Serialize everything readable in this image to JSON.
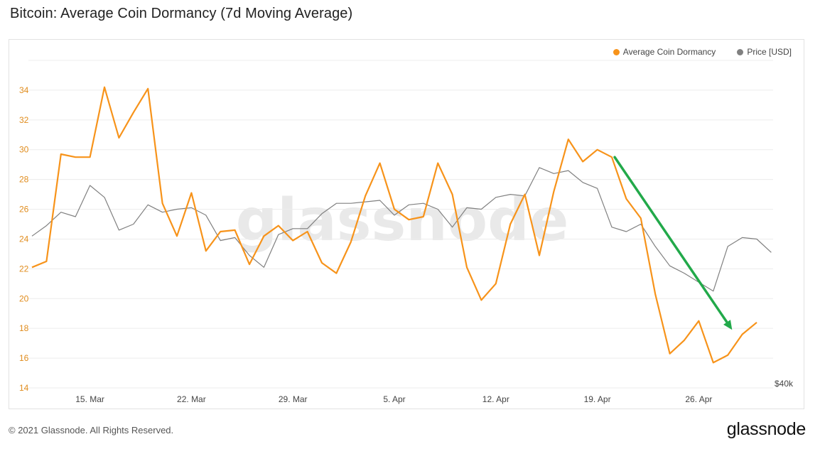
{
  "header": {
    "title": "Bitcoin: Average Coin Dormancy (7d Moving Average)"
  },
  "legend": [
    {
      "label": "Average Coin Dormancy",
      "color": "#f7931a"
    },
    {
      "label": "Price [USD]",
      "color": "#808080"
    }
  ],
  "footer": {
    "copyright": "© 2021 Glassnode. All Rights Reserved.",
    "brand": "glassnode"
  },
  "watermark": "glassnode",
  "chart_data": {
    "type": "line",
    "title": "Bitcoin: Average Coin Dormancy (7d Moving Average)",
    "xlabel": "",
    "ylabel": "",
    "ylim": [
      14,
      36
    ],
    "y_ticks": [
      "14",
      "16",
      "18",
      "20",
      "22",
      "24",
      "26",
      "28",
      "30",
      "32",
      "34"
    ],
    "x_tick_labels": [
      {
        "label": "15. Mar",
        "index": 4
      },
      {
        "label": "22. Mar",
        "index": 11
      },
      {
        "label": "29. Mar",
        "index": 18
      },
      {
        "label": "5. Apr",
        "index": 25
      },
      {
        "label": "12. Apr",
        "index": 32
      },
      {
        "label": "19. Apr",
        "index": 39
      },
      {
        "label": "26. Apr",
        "index": 46
      }
    ],
    "price_axis_label": "$40k",
    "series": [
      {
        "name": "Average Coin Dormancy",
        "axis": "left",
        "color": "#f7931a",
        "values": [
          22.1,
          22.5,
          29.7,
          29.5,
          29.5,
          34.2,
          30.8,
          32.5,
          34.1,
          26.4,
          24.2,
          27.1,
          23.2,
          24.5,
          24.6,
          22.3,
          24.2,
          24.9,
          23.9,
          24.5,
          22.4,
          21.7,
          23.8,
          26.9,
          29.1,
          26.0,
          25.3,
          25.5,
          29.1,
          27.0,
          22.1,
          19.9,
          21.0,
          25.0,
          27.0,
          22.9,
          27.2,
          30.7,
          29.2,
          30.0,
          29.5,
          26.7,
          25.4,
          20.3,
          16.3,
          17.2,
          18.5,
          15.7,
          16.2,
          17.6,
          18.4
        ]
      },
      {
        "name": "Price [USD]",
        "axis": "right",
        "color": "#808080",
        "values_plotted_on_left_scale": [
          24.2,
          24.9,
          25.8,
          25.5,
          27.6,
          26.8,
          24.6,
          25.0,
          26.3,
          25.8,
          26.0,
          26.1,
          25.6,
          23.9,
          24.1,
          22.9,
          22.1,
          24.3,
          24.7,
          24.7,
          25.7,
          26.4,
          26.4,
          26.5,
          26.6,
          25.6,
          26.3,
          26.4,
          26.0,
          24.8,
          26.1,
          26.0,
          26.8,
          27.0,
          26.9,
          28.8,
          28.4,
          28.6,
          27.8,
          27.4,
          24.8,
          24.5,
          25.0,
          23.5,
          22.2,
          21.7,
          21.1,
          20.5,
          23.5,
          24.1,
          24.0,
          23.1
        ]
      }
    ],
    "annotation": {
      "type": "arrow",
      "color": "#22a94a",
      "from": {
        "index": 40.2,
        "value": 29.5
      },
      "to": {
        "index": 48.3,
        "value": 17.9
      }
    }
  }
}
